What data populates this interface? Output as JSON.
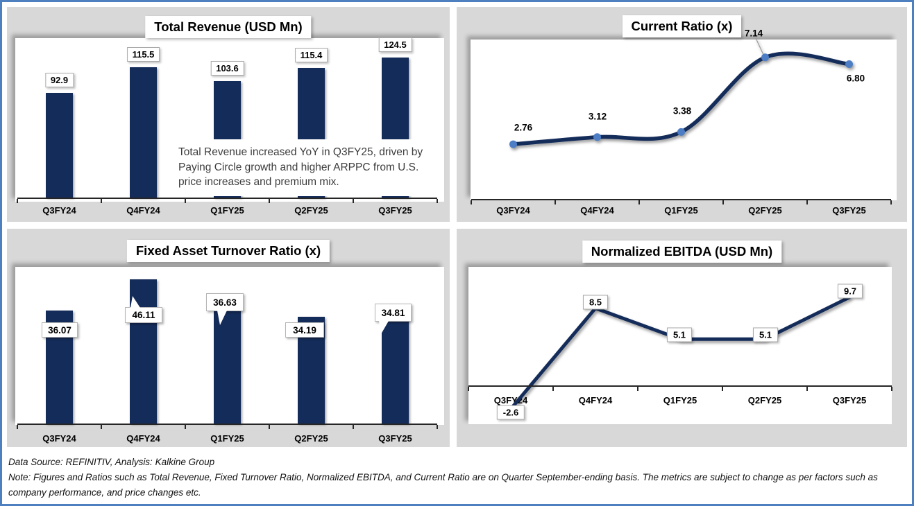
{
  "chart_data": [
    {
      "id": "total_revenue",
      "type": "bar",
      "title": "Total Revenue (USD Mn)",
      "categories": [
        "Q3FY24",
        "Q4FY24",
        "Q1FY25",
        "Q2FY25",
        "Q3FY25"
      ],
      "values": [
        92.9,
        115.5,
        103.6,
        115.4,
        124.5
      ],
      "labels": [
        "92.9",
        "115.5",
        "103.6",
        "115.4",
        "124.5"
      ],
      "annotation": "Total Revenue increased YoY in Q3FY25, driven by Paying Circle growth and higher ARPPC from U.S. price increases and premium mix.",
      "xlabel": "",
      "ylabel": "",
      "ylim": [
        0,
        145
      ],
      "grid": false,
      "legend": "none"
    },
    {
      "id": "current_ratio",
      "type": "line",
      "title": "Current Ratio (x)",
      "categories": [
        "Q3FY24",
        "Q4FY24",
        "Q1FY25",
        "Q2FY25",
        "Q3FY25"
      ],
      "values": [
        2.76,
        3.12,
        3.38,
        7.14,
        6.8
      ],
      "labels": [
        "2.76",
        "3.12",
        "3.38",
        "7.14",
        "6.80"
      ],
      "smooth": true,
      "markers": true,
      "xlabel": "",
      "ylabel": "",
      "ylim": [
        0,
        8
      ],
      "grid": false,
      "legend": "none"
    },
    {
      "id": "fixed_asset_turnover",
      "type": "bar",
      "title": "Fixed Asset Turnover Ratio (x)",
      "categories": [
        "Q3FY24",
        "Q4FY24",
        "Q1FY25",
        "Q2FY25",
        "Q3FY25"
      ],
      "values": [
        36.07,
        46.11,
        36.63,
        34.19,
        34.81
      ],
      "labels": [
        "36.07",
        "46.11",
        "36.63",
        "34.19",
        "34.81"
      ],
      "xlabel": "",
      "ylabel": "",
      "ylim": [
        0,
        50
      ],
      "grid": false,
      "legend": "none"
    },
    {
      "id": "normalized_ebitda",
      "type": "line",
      "title": "Normalized EBITDA (USD Mn)",
      "categories": [
        "Q3FY24",
        "Q4FY24",
        "Q1FY25",
        "Q2FY25",
        "Q3FY25"
      ],
      "values": [
        -2.6,
        8.5,
        5.1,
        5.1,
        9.7
      ],
      "labels": [
        "-2.6",
        "8.5",
        "5.1",
        "5.1",
        "9.7"
      ],
      "smooth": false,
      "markers": false,
      "xlabel": "",
      "ylabel": "",
      "ylim": [
        -4,
        12
      ],
      "grid": false,
      "legend": "none"
    }
  ],
  "footer": {
    "source": "Data Source: REFINITIV, Analysis: Kalkine Group",
    "note": "Note: Figures and Ratios such as Total Revenue, Fixed Turnover Ratio, Normalized EBITDA, and Current Ratio are on Quarter September-ending basis. The metrics are subject to change as per factors such as company performance, and price changes etc."
  },
  "colors": {
    "navy": "#142c5a",
    "marker_blue": "#4d7dc4",
    "panel_gray": "#d8d8d8",
    "border_blue": "#4e80bf",
    "axis": "#262626"
  }
}
